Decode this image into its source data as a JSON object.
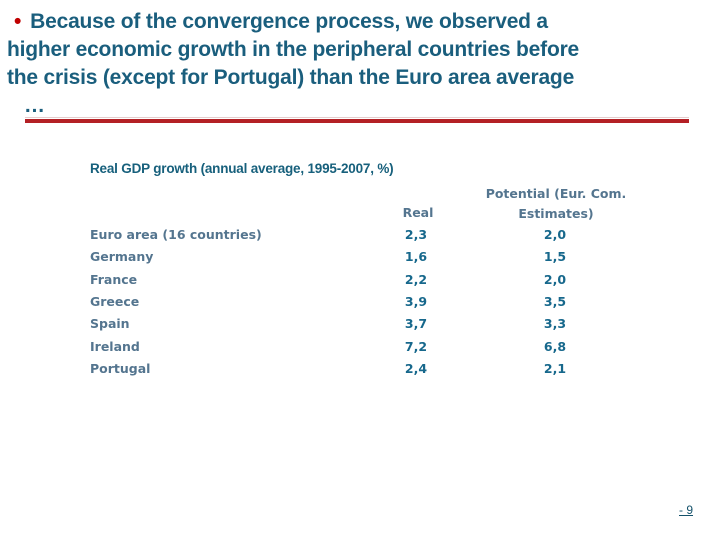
{
  "slide": {
    "title": {
      "bullet": "•",
      "lines": [
        "Because of the convergence process, we observed a",
        "higher economic growth in the peripheral countries before",
        "the crisis (except for Portugal) than the Euro area average",
        "…"
      ]
    },
    "table": {
      "title": "Real GDP growth (annual average, 1995-2007, %)",
      "columns": {
        "real_label": "Real",
        "potential_line1": "Potential (Eur. Com.",
        "potential_line2": "Estimates)"
      },
      "rows": [
        {
          "label": "Euro area (16 countries)",
          "real": "2,3",
          "potential": "2,0"
        },
        {
          "label": "Germany",
          "real": "1,6",
          "potential": "1,5"
        },
        {
          "label": "France",
          "real": "2,2",
          "potential": "2,0"
        },
        {
          "label": "Greece",
          "real": "3,9",
          "potential": "3,5"
        },
        {
          "label": "Spain",
          "real": "3,7",
          "potential": "3,3"
        },
        {
          "label": "Ireland",
          "real": "7,2",
          "potential": "6,8"
        },
        {
          "label": "Portugal",
          "real": "2,4",
          "potential": "2,1"
        }
      ]
    },
    "page_number": "- 9",
    "colors": {
      "title_text": "#1A5E7D",
      "bullet": "#C00000",
      "divider": "#B42025",
      "table_title": "#17607C",
      "header_text": "#54758F",
      "label_text": "#54758F",
      "value_text": "#17688C",
      "page_number": "#14526B"
    }
  }
}
